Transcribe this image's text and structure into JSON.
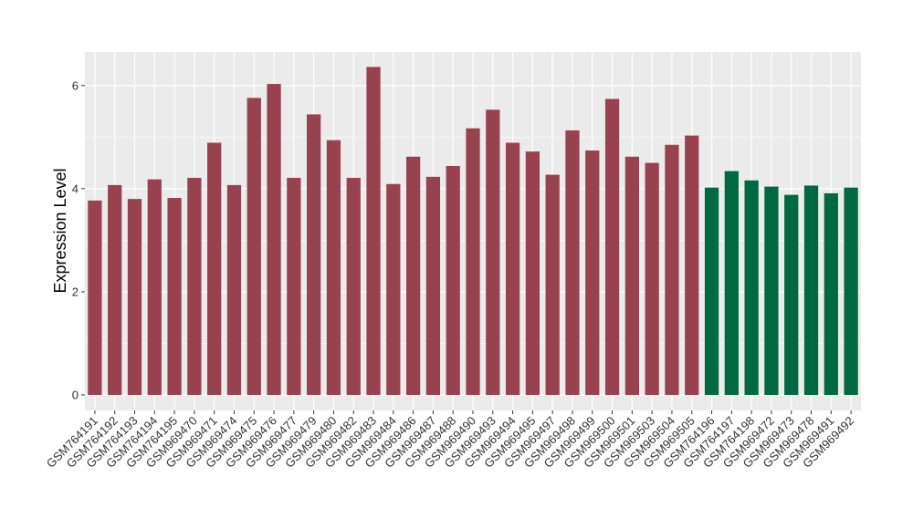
{
  "chart_data": {
    "type": "bar",
    "title": "",
    "xlabel": "",
    "ylabel": "Expression Level",
    "ylim": [
      -0.3,
      6.65
    ],
    "yticks": [
      0,
      2,
      4,
      6
    ],
    "grid": true,
    "legend": "none",
    "categories": [
      "GSM764191",
      "GSM764192",
      "GSM764193",
      "GSM764194",
      "GSM764195",
      "GSM969470",
      "GSM969471",
      "GSM969474",
      "GSM969475",
      "GSM969476",
      "GSM969477",
      "GSM969479",
      "GSM969480",
      "GSM969482",
      "GSM969483",
      "GSM969484",
      "GSM969486",
      "GSM969487",
      "GSM969488",
      "GSM969490",
      "GSM969493",
      "GSM969494",
      "GSM969495",
      "GSM969497",
      "GSM969498",
      "GSM969499",
      "GSM969500",
      "GSM969501",
      "GSM969503",
      "GSM969504",
      "GSM969505",
      "GSM764196",
      "GSM764197",
      "GSM764198",
      "GSM969472",
      "GSM969473",
      "GSM969478",
      "GSM969491",
      "GSM969492"
    ],
    "values": [
      3.77,
      4.07,
      3.8,
      4.18,
      3.82,
      4.21,
      4.89,
      4.07,
      5.76,
      6.03,
      4.21,
      5.44,
      4.94,
      4.21,
      6.36,
      4.09,
      4.62,
      4.23,
      4.44,
      5.17,
      5.53,
      4.89,
      4.72,
      4.27,
      5.13,
      4.74,
      5.74,
      4.62,
      4.5,
      4.85,
      5.03,
      4.02,
      4.34,
      4.16,
      4.04,
      3.88,
      4.06,
      3.91,
      4.02
    ],
    "group_colors": [
      "#99424f",
      "#99424f",
      "#99424f",
      "#99424f",
      "#99424f",
      "#99424f",
      "#99424f",
      "#99424f",
      "#99424f",
      "#99424f",
      "#99424f",
      "#99424f",
      "#99424f",
      "#99424f",
      "#99424f",
      "#99424f",
      "#99424f",
      "#99424f",
      "#99424f",
      "#99424f",
      "#99424f",
      "#99424f",
      "#99424f",
      "#99424f",
      "#99424f",
      "#99424f",
      "#99424f",
      "#99424f",
      "#99424f",
      "#99424f",
      "#99424f",
      "#006843",
      "#006843",
      "#006843",
      "#006843",
      "#006843",
      "#006843",
      "#006843",
      "#006843"
    ],
    "panel_background": "#ebebeb",
    "grid_color": "#ffffff"
  }
}
